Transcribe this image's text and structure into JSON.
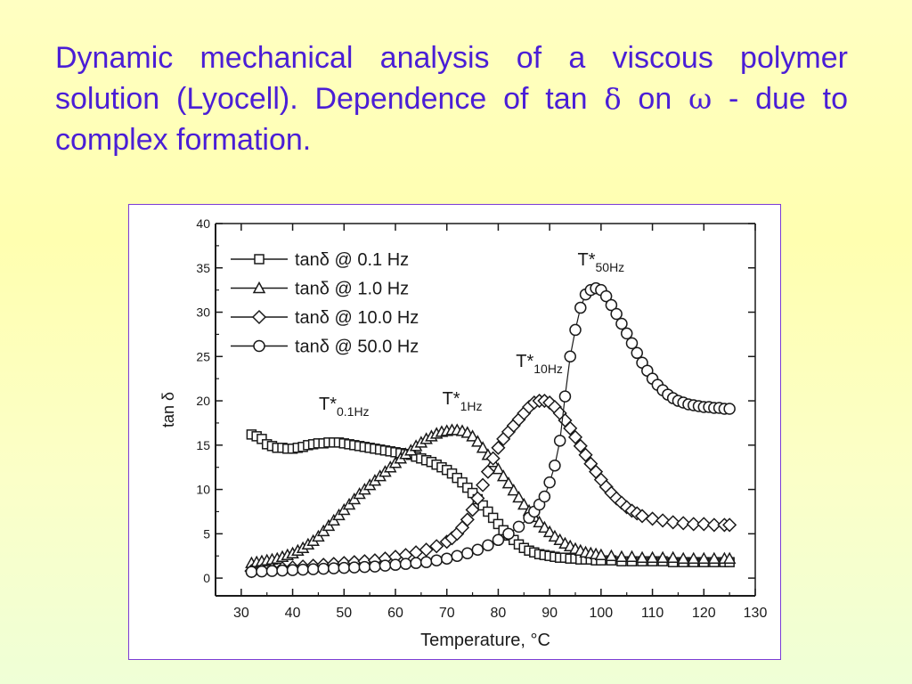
{
  "slide": {
    "title_part1": "Dynamic mechanical analysis of a viscous polymer solution (Lyocell).  Dependence of tan ",
    "delta_symbol": "δ",
    "title_part2": " on ",
    "omega_symbol": "ω",
    "title_part3": " - due to complex formation."
  },
  "colors": {
    "title": "#4a1ed6",
    "frame_border": "#7b3cd6",
    "ink": "#1a1a1a"
  },
  "chart_data": {
    "type": "scatter",
    "xlabel": "Temperature, °C",
    "ylabel": "tan δ",
    "xlim": [
      25,
      130
    ],
    "ylim": [
      -2,
      40
    ],
    "x_ticks": [
      30,
      40,
      50,
      60,
      70,
      80,
      90,
      100,
      110,
      120,
      130
    ],
    "y_ticks": [
      0,
      5,
      10,
      15,
      20,
      25,
      30,
      35,
      40
    ],
    "legend_position": "top-left",
    "series": [
      {
        "name": "tanδ @   0.1 Hz",
        "marker": "square",
        "points": [
          [
            32,
            16.2
          ],
          [
            33,
            16
          ],
          [
            34,
            15.7
          ],
          [
            35,
            15.1
          ],
          [
            36,
            14.9
          ],
          [
            37,
            14.7
          ],
          [
            38,
            14.7
          ],
          [
            39,
            14.6
          ],
          [
            40,
            14.6
          ],
          [
            41,
            14.7
          ],
          [
            42,
            14.8
          ],
          [
            43,
            15
          ],
          [
            44,
            15.1
          ],
          [
            45,
            15.2
          ],
          [
            46,
            15.2
          ],
          [
            47,
            15.3
          ],
          [
            48,
            15.3
          ],
          [
            49,
            15.3
          ],
          [
            50,
            15.2
          ],
          [
            51,
            15.1
          ],
          [
            52,
            15
          ],
          [
            53,
            14.9
          ],
          [
            54,
            14.8
          ],
          [
            55,
            14.7
          ],
          [
            56,
            14.6
          ],
          [
            57,
            14.5
          ],
          [
            58,
            14.4
          ],
          [
            59,
            14.3
          ],
          [
            60,
            14.2
          ],
          [
            61,
            14.1
          ],
          [
            62,
            14
          ],
          [
            63,
            13.9
          ],
          [
            64,
            13.7
          ],
          [
            65,
            13.5
          ],
          [
            66,
            13.3
          ],
          [
            67,
            13.1
          ],
          [
            68,
            12.8
          ],
          [
            69,
            12.5
          ],
          [
            70,
            12.2
          ],
          [
            71,
            11.8
          ],
          [
            72,
            11.3
          ],
          [
            73,
            10.8
          ],
          [
            74,
            10.2
          ],
          [
            75,
            9.6
          ],
          [
            76,
            8.9
          ],
          [
            77,
            8.2
          ],
          [
            78,
            7.5
          ],
          [
            79,
            6.8
          ],
          [
            80,
            6.1
          ],
          [
            81,
            5.4
          ],
          [
            82,
            4.8
          ],
          [
            83,
            4.3
          ],
          [
            84,
            3.8
          ],
          [
            85,
            3.4
          ],
          [
            86,
            3.1
          ],
          [
            87,
            2.9
          ],
          [
            88,
            2.7
          ],
          [
            89,
            2.6
          ],
          [
            90,
            2.5
          ],
          [
            91,
            2.4
          ],
          [
            92,
            2.3
          ],
          [
            93,
            2.3
          ],
          [
            94,
            2.2
          ],
          [
            95,
            2.2
          ],
          [
            96,
            2.1
          ],
          [
            97,
            2.1
          ],
          [
            98,
            2.1
          ],
          [
            99,
            2
          ],
          [
            100,
            2
          ],
          [
            102,
            2
          ],
          [
            104,
            1.9
          ],
          [
            106,
            1.9
          ],
          [
            108,
            1.9
          ],
          [
            110,
            1.9
          ],
          [
            112,
            1.9
          ],
          [
            114,
            1.8
          ],
          [
            116,
            1.8
          ],
          [
            118,
            1.8
          ],
          [
            120,
            1.8
          ],
          [
            122,
            1.8
          ],
          [
            124,
            1.8
          ],
          [
            125,
            1.8
          ]
        ]
      },
      {
        "name": "tanδ @   1.0 Hz",
        "marker": "triangle",
        "points": [
          [
            32,
            1.7
          ],
          [
            33,
            1.8
          ],
          [
            34,
            1.9
          ],
          [
            35,
            2
          ],
          [
            36,
            2.1
          ],
          [
            37,
            2.2
          ],
          [
            38,
            2.4
          ],
          [
            39,
            2.6
          ],
          [
            40,
            2.8
          ],
          [
            41,
            3.1
          ],
          [
            42,
            3.4
          ],
          [
            43,
            3.8
          ],
          [
            44,
            4.2
          ],
          [
            45,
            4.7
          ],
          [
            46,
            5.3
          ],
          [
            47,
            5.9
          ],
          [
            48,
            6.5
          ],
          [
            49,
            7.1
          ],
          [
            50,
            7.7
          ],
          [
            51,
            8.3
          ],
          [
            52,
            8.9
          ],
          [
            53,
            9.5
          ],
          [
            54,
            10
          ],
          [
            55,
            10.5
          ],
          [
            56,
            11
          ],
          [
            57,
            11.5
          ],
          [
            58,
            12
          ],
          [
            59,
            12.5
          ],
          [
            60,
            13
          ],
          [
            61,
            13.5
          ],
          [
            62,
            14
          ],
          [
            63,
            14.4
          ],
          [
            64,
            14.9
          ],
          [
            65,
            15.3
          ],
          [
            66,
            15.7
          ],
          [
            67,
            16
          ],
          [
            68,
            16.3
          ],
          [
            69,
            16.5
          ],
          [
            70,
            16.6
          ],
          [
            71,
            16.7
          ],
          [
            72,
            16.7
          ],
          [
            73,
            16.6
          ],
          [
            74,
            16.4
          ],
          [
            75,
            16
          ],
          [
            76,
            15.4
          ],
          [
            77,
            14.7
          ],
          [
            78,
            13.9
          ],
          [
            79,
            13.1
          ],
          [
            80,
            12.3
          ],
          [
            81,
            11.5
          ],
          [
            82,
            10.7
          ],
          [
            83,
            9.9
          ],
          [
            84,
            9.1
          ],
          [
            85,
            8.3
          ],
          [
            86,
            7.6
          ],
          [
            87,
            6.9
          ],
          [
            88,
            6.3
          ],
          [
            89,
            5.7
          ],
          [
            90,
            5.2
          ],
          [
            91,
            4.7
          ],
          [
            92,
            4.3
          ],
          [
            93,
            3.9
          ],
          [
            94,
            3.6
          ],
          [
            95,
            3.3
          ],
          [
            96,
            3.1
          ],
          [
            97,
            2.9
          ],
          [
            98,
            2.8
          ],
          [
            99,
            2.7
          ],
          [
            100,
            2.6
          ],
          [
            102,
            2.5
          ],
          [
            104,
            2.4
          ],
          [
            106,
            2.4
          ],
          [
            108,
            2.3
          ],
          [
            110,
            2.3
          ],
          [
            112,
            2.3
          ],
          [
            114,
            2.3
          ],
          [
            116,
            2.2
          ],
          [
            118,
            2.2
          ],
          [
            120,
            2.2
          ],
          [
            122,
            2.2
          ],
          [
            124,
            2.2
          ],
          [
            125,
            2.2
          ]
        ]
      },
      {
        "name": "tanδ @ 10.0 Hz",
        "marker": "diamond",
        "points": [
          [
            32,
            0.8
          ],
          [
            34,
            0.9
          ],
          [
            36,
            1
          ],
          [
            38,
            1.1
          ],
          [
            40,
            1.2
          ],
          [
            42,
            1.3
          ],
          [
            44,
            1.4
          ],
          [
            46,
            1.5
          ],
          [
            48,
            1.6
          ],
          [
            50,
            1.7
          ],
          [
            52,
            1.8
          ],
          [
            54,
            1.9
          ],
          [
            56,
            2
          ],
          [
            58,
            2.2
          ],
          [
            60,
            2.4
          ],
          [
            62,
            2.6
          ],
          [
            64,
            2.9
          ],
          [
            66,
            3.2
          ],
          [
            68,
            3.6
          ],
          [
            70,
            4.1
          ],
          [
            71,
            4.5
          ],
          [
            72,
            5
          ],
          [
            73,
            5.7
          ],
          [
            74,
            6.6
          ],
          [
            75,
            7.7
          ],
          [
            76,
            9
          ],
          [
            77,
            10.5
          ],
          [
            78,
            12
          ],
          [
            79,
            13.5
          ],
          [
            80,
            14.7
          ],
          [
            81,
            15.7
          ],
          [
            82,
            16.5
          ],
          [
            83,
            17.2
          ],
          [
            84,
            17.9
          ],
          [
            85,
            18.6
          ],
          [
            86,
            19.3
          ],
          [
            87,
            19.8
          ],
          [
            88,
            20
          ],
          [
            89,
            20
          ],
          [
            90,
            19.8
          ],
          [
            91,
            19.3
          ],
          [
            92,
            18.6
          ],
          [
            93,
            17.8
          ],
          [
            94,
            16.9
          ],
          [
            95,
            15.9
          ],
          [
            96,
            14.9
          ],
          [
            97,
            13.9
          ],
          [
            98,
            12.9
          ],
          [
            99,
            12
          ],
          [
            100,
            11.1
          ],
          [
            101,
            10.3
          ],
          [
            102,
            9.6
          ],
          [
            103,
            9
          ],
          [
            104,
            8.5
          ],
          [
            105,
            8
          ],
          [
            106,
            7.6
          ],
          [
            107,
            7.3
          ],
          [
            108,
            7
          ],
          [
            110,
            6.7
          ],
          [
            112,
            6.5
          ],
          [
            114,
            6.3
          ],
          [
            116,
            6.2
          ],
          [
            118,
            6.1
          ],
          [
            120,
            6.1
          ],
          [
            122,
            6
          ],
          [
            124,
            6
          ],
          [
            125,
            6
          ]
        ]
      },
      {
        "name": "tanδ @ 50.0 Hz",
        "marker": "circle",
        "points": [
          [
            32,
            0.7
          ],
          [
            34,
            0.75
          ],
          [
            36,
            0.8
          ],
          [
            38,
            0.85
          ],
          [
            40,
            0.9
          ],
          [
            42,
            0.95
          ],
          [
            44,
            1
          ],
          [
            46,
            1.05
          ],
          [
            48,
            1.1
          ],
          [
            50,
            1.15
          ],
          [
            52,
            1.2
          ],
          [
            54,
            1.25
          ],
          [
            56,
            1.3
          ],
          [
            58,
            1.4
          ],
          [
            60,
            1.5
          ],
          [
            62,
            1.6
          ],
          [
            64,
            1.7
          ],
          [
            66,
            1.8
          ],
          [
            68,
            2
          ],
          [
            70,
            2.2
          ],
          [
            72,
            2.5
          ],
          [
            74,
            2.8
          ],
          [
            76,
            3.2
          ],
          [
            78,
            3.7
          ],
          [
            80,
            4.3
          ],
          [
            82,
            5
          ],
          [
            84,
            5.8
          ],
          [
            86,
            6.8
          ],
          [
            87,
            7.5
          ],
          [
            88,
            8.3
          ],
          [
            89,
            9.2
          ],
          [
            90,
            10.8
          ],
          [
            91,
            12.7
          ],
          [
            92,
            15.5
          ],
          [
            93,
            20.5
          ],
          [
            94,
            25
          ],
          [
            95,
            28
          ],
          [
            96,
            30.5
          ],
          [
            97,
            32
          ],
          [
            98,
            32.5
          ],
          [
            99,
            32.7
          ],
          [
            100,
            32.5
          ],
          [
            101,
            31.8
          ],
          [
            102,
            30.8
          ],
          [
            103,
            29.8
          ],
          [
            104,
            28.7
          ],
          [
            105,
            27.6
          ],
          [
            106,
            26.5
          ],
          [
            107,
            25.4
          ],
          [
            108,
            24.3
          ],
          [
            109,
            23.4
          ],
          [
            110,
            22.5
          ],
          [
            111,
            21.8
          ],
          [
            112,
            21.2
          ],
          [
            113,
            20.7
          ],
          [
            114,
            20.3
          ],
          [
            115,
            20
          ],
          [
            116,
            19.8
          ],
          [
            117,
            19.6
          ],
          [
            118,
            19.5
          ],
          [
            119,
            19.4
          ],
          [
            120,
            19.3
          ],
          [
            121,
            19.3
          ],
          [
            122,
            19.2
          ],
          [
            123,
            19.2
          ],
          [
            124,
            19.1
          ],
          [
            125,
            19.1
          ]
        ]
      }
    ],
    "annotations": [
      {
        "main": "T*",
        "sub": "0.1Hz",
        "x": 50,
        "y": 19
      },
      {
        "main": "T*",
        "sub": "1Hz",
        "x": 73,
        "y": 19.6
      },
      {
        "main": "T*",
        "sub": "10Hz",
        "x": 88,
        "y": 23.8
      },
      {
        "main": "T*",
        "sub": "50Hz",
        "x": 100,
        "y": 35.3
      }
    ]
  }
}
